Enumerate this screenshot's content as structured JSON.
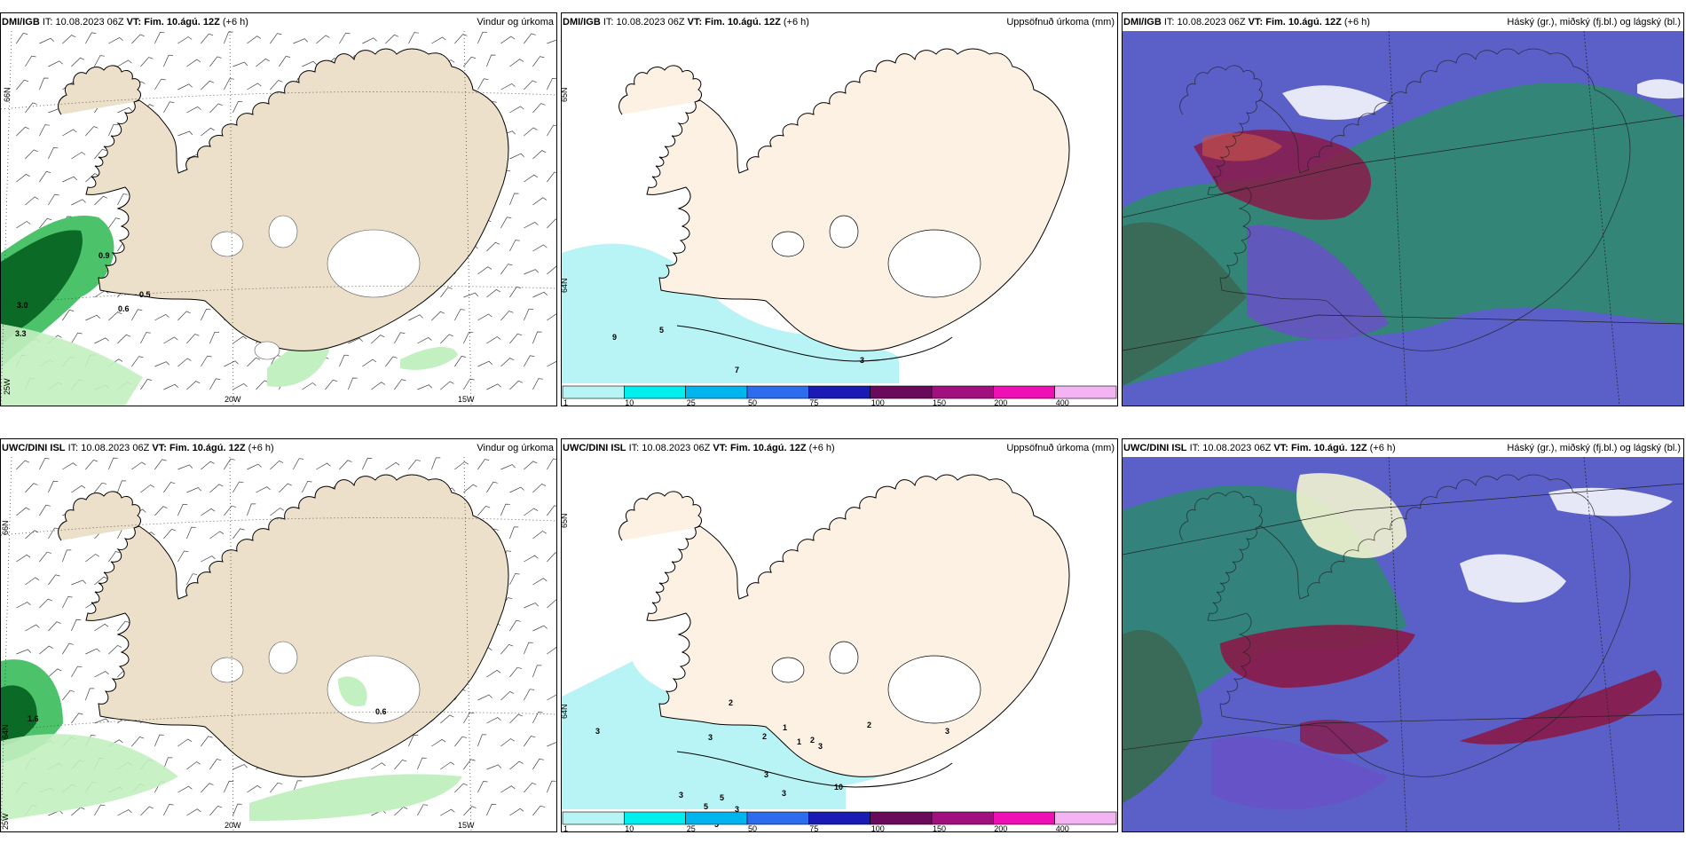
{
  "panels": [
    {
      "id": "p1",
      "model": "DMI/IGB",
      "it_label": "IT:",
      "it": "10.08.2023 06Z",
      "vt_label": "VT:",
      "vt": "Fim. 10.ágú. 12Z",
      "step": "(+6 h)",
      "title": "Vindur og úrkoma",
      "lat_labels": [
        "66N",
        "25W"
      ],
      "lon_labels": [
        "20W",
        "15W"
      ],
      "values": [
        "0.9",
        "3.0",
        "0.5",
        "0.6",
        "3.3"
      ]
    },
    {
      "id": "p2",
      "model": "DMI/IGB",
      "it_label": "IT:",
      "it": "10.08.2023 06Z",
      "vt_label": "VT:",
      "vt": "Fim. 10.ágú. 12Z",
      "step": "(+6 h)",
      "title": "Uppsöfnuð úrkoma (mm)",
      "lat_labels": [
        "65N",
        "64N"
      ],
      "values": [
        "9",
        "5",
        "7",
        "3"
      ]
    },
    {
      "id": "p3",
      "model": "DMI/IGB",
      "it_label": "IT:",
      "it": "10.08.2023 06Z",
      "vt_label": "VT:",
      "vt": "Fim. 10.ágú. 12Z",
      "step": "(+6 h)",
      "title": "Háský (gr.), miðský (fj.bl.) og lágský (bl.)"
    },
    {
      "id": "p4",
      "model": "UWC/DINI ISL",
      "it_label": "IT:",
      "it": "10.08.2023 06Z",
      "vt_label": "VT:",
      "vt": "Fim. 10.ágú. 12Z",
      "step": "(+6 h)",
      "title": "Vindur og úrkoma",
      "lat_labels": [
        "66N",
        "64N",
        "25W"
      ],
      "lon_labels": [
        "20W",
        "15W"
      ],
      "values": [
        "1.6",
        "0.6"
      ]
    },
    {
      "id": "p5",
      "model": "UWC/DINI ISL",
      "it_label": "IT:",
      "it": "10.08.2023 06Z",
      "vt_label": "VT:",
      "vt": "Fim. 10.ágú. 12Z",
      "step": "(+6 h)",
      "title": "Uppsöfnuð úrkoma (mm)",
      "lat_labels": [
        "65N",
        "64N"
      ],
      "values": [
        "3",
        "2",
        "3",
        "2",
        "1",
        "3",
        "3",
        "5",
        "5",
        "3",
        "3",
        "5",
        "3",
        "2",
        "2",
        "1",
        "3",
        "10",
        "3"
      ]
    },
    {
      "id": "p6",
      "model": "UWC/DINI ISL",
      "it_label": "IT:",
      "it": "10.08.2023 06Z",
      "vt_label": "VT:",
      "vt": "Fim. 10.ágú. 12Z",
      "step": "(+6 h)",
      "title": "Háský (gr.), miðský (fj.bl.) og lágský (bl.)"
    }
  ],
  "colorbar": {
    "ticks": [
      "1",
      "10",
      "25",
      "50",
      "75",
      "100",
      "150",
      "200",
      "400"
    ],
    "colors": [
      "#b8f4f6",
      "#00eeee",
      "#00b4ee",
      "#2d6cee",
      "#1a1ab4",
      "#6a0a5a",
      "#a0107e",
      "#ee10b4",
      "#f4b4f4"
    ]
  },
  "colors": {
    "land": "#ede0ca",
    "land2": "#fdf1e4",
    "precip_light": "#c2f0c0",
    "precip_mid": "#4cc36a",
    "precip_dark": "#0a6a26",
    "precip_sea": "#b8f4f6",
    "high_cloud": "#2d8a6e",
    "mid_cloud": "#6a50c8",
    "low_cloud": "#5a60c8",
    "red_cloud": "#8a1a48"
  }
}
